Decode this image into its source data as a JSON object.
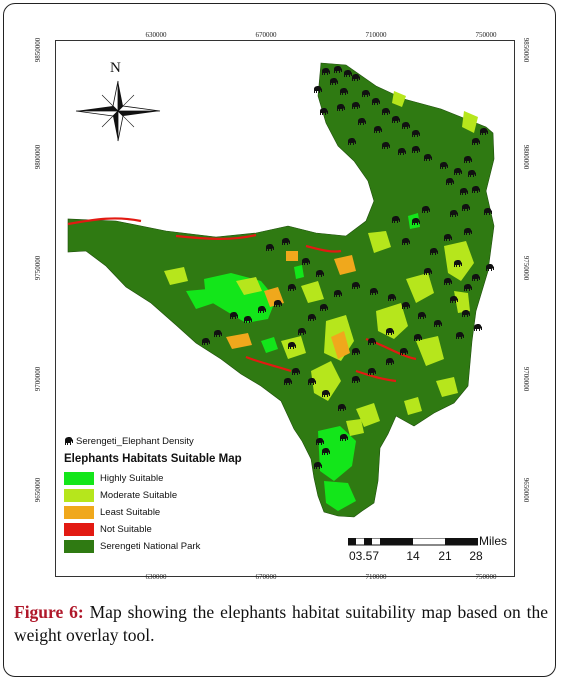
{
  "north_arrow": {
    "label": "N"
  },
  "axis": {
    "x_ticks": [
      "630000",
      "670000",
      "710000",
      "750000"
    ],
    "y_ticks": [
      "9850000",
      "9800000",
      "9750000",
      "9700000",
      "9650000"
    ]
  },
  "legend": {
    "density_label": "Serengeti_Elephant Density",
    "title": "Elephants Habitats Suitable Map",
    "items": [
      {
        "label": "Highly Suitable",
        "color": "#13e61a"
      },
      {
        "label": "Moderate Suitable",
        "color": "#b6e61c"
      },
      {
        "label": "Least Suitable",
        "color": "#f0a81c"
      },
      {
        "label": "Not Suitable",
        "color": "#e21a12"
      },
      {
        "label": "Serengeti National Park",
        "color": "#2f7a12"
      }
    ]
  },
  "scale_bar": {
    "unit": "Miles",
    "labels": [
      "03.57",
      "14",
      "21",
      "28"
    ]
  },
  "caption": {
    "label": "Figure 6:",
    "text": " Map showing the elephants habitat suitability map based on the weight overlay tool."
  },
  "colors": {
    "park": "#2f7a12",
    "highly": "#13e61a",
    "moderate": "#b6e61c",
    "least": "#f0a81c",
    "not": "#e21a12",
    "elephant": "#111111"
  }
}
